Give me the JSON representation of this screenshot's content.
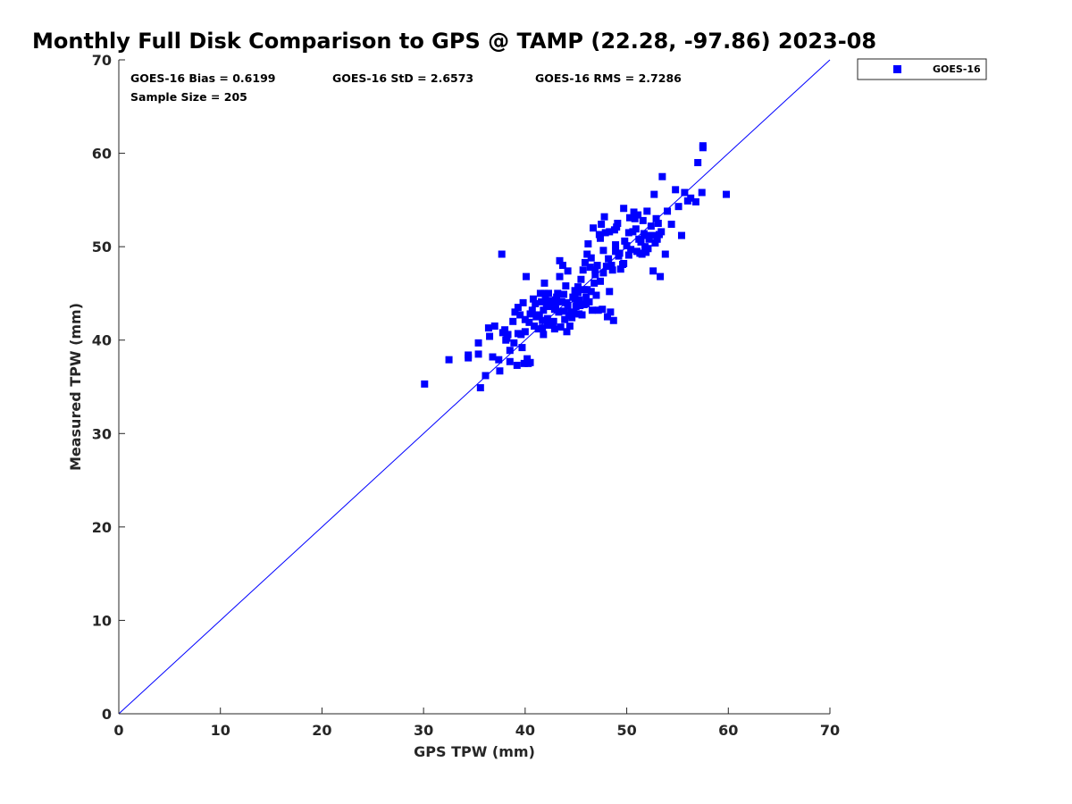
{
  "chart_data": {
    "type": "scatter",
    "title": "Monthly Full Disk Comparison to GPS @ TAMP (22.28, -97.86) 2023-08",
    "xlabel": "GPS TPW (mm)",
    "ylabel": "Measured TPW (mm)",
    "xlim": [
      0,
      70
    ],
    "ylim": [
      0,
      70
    ],
    "xticks": [
      "0",
      "10",
      "20",
      "30",
      "40",
      "50",
      "60",
      "70"
    ],
    "yticks": [
      "0",
      "10",
      "20",
      "30",
      "40",
      "50",
      "60",
      "70"
    ],
    "grid": false,
    "legend_position": "outside-top-right",
    "reference_line": {
      "x": [
        0,
        70
      ],
      "y": [
        0,
        70
      ],
      "color": "#0000ff"
    },
    "stats": {
      "bias": "GOES-16 Bias = 0.6199",
      "std": "GOES-16 StD = 2.6573",
      "rms": "GOES-16 RMS = 2.7286",
      "sample": "Sample Size = 205"
    },
    "marker_color": "#0000ff",
    "series": [
      {
        "name": "GOES-16",
        "points": [
          [
            30.1,
            35.3
          ],
          [
            32.5,
            37.9
          ],
          [
            34.4,
            38.1
          ],
          [
            34.4,
            38.4
          ],
          [
            35.4,
            38.5
          ],
          [
            35.4,
            39.7
          ],
          [
            35.6,
            34.9
          ],
          [
            36.1,
            36.2
          ],
          [
            36.4,
            41.3
          ],
          [
            36.5,
            40.4
          ],
          [
            36.8,
            38.2
          ],
          [
            37.0,
            41.5
          ],
          [
            37.4,
            37.9
          ],
          [
            37.5,
            36.7
          ],
          [
            37.7,
            49.2
          ],
          [
            37.8,
            40.8
          ],
          [
            38.0,
            41.1
          ],
          [
            38.1,
            40.0
          ],
          [
            38.3,
            40.6
          ],
          [
            38.5,
            37.7
          ],
          [
            38.5,
            38.9
          ],
          [
            38.8,
            42.0
          ],
          [
            38.9,
            39.7
          ],
          [
            39.0,
            43.0
          ],
          [
            39.2,
            37.3
          ],
          [
            39.3,
            43.5
          ],
          [
            39.5,
            42.7
          ],
          [
            39.6,
            40.6
          ],
          [
            39.7,
            39.2
          ],
          [
            39.8,
            44.0
          ],
          [
            39.9,
            37.5
          ],
          [
            40.0,
            40.9
          ],
          [
            40.0,
            42.2
          ],
          [
            40.1,
            46.8
          ],
          [
            40.2,
            38.0
          ],
          [
            40.3,
            37.5
          ],
          [
            40.5,
            42.8
          ],
          [
            40.5,
            37.6
          ],
          [
            40.7,
            43.2
          ],
          [
            40.8,
            44.4
          ],
          [
            40.9,
            41.5
          ],
          [
            41.0,
            43.9
          ],
          [
            41.1,
            42.5
          ],
          [
            41.3,
            41.2
          ],
          [
            41.4,
            42.7
          ],
          [
            41.6,
            44.1
          ],
          [
            41.7,
            42.1
          ],
          [
            41.8,
            40.6
          ],
          [
            41.8,
            43.2
          ],
          [
            41.9,
            46.1
          ],
          [
            41.9,
            45.0
          ],
          [
            42.0,
            44.5
          ],
          [
            42.1,
            43.8
          ],
          [
            42.2,
            42.3
          ],
          [
            42.3,
            45.0
          ],
          [
            42.4,
            43.6
          ],
          [
            42.6,
            44.2
          ],
          [
            42.7,
            41.6
          ],
          [
            42.8,
            42.0
          ],
          [
            42.9,
            41.2
          ],
          [
            43.0,
            43.6
          ],
          [
            43.1,
            44.6
          ],
          [
            43.2,
            45.0
          ],
          [
            43.3,
            43.0
          ],
          [
            43.4,
            48.5
          ],
          [
            43.4,
            46.8
          ],
          [
            43.5,
            41.4
          ],
          [
            43.6,
            44.1
          ],
          [
            43.7,
            48.0
          ],
          [
            43.8,
            44.9
          ],
          [
            43.9,
            42.2
          ],
          [
            44.0,
            45.8
          ],
          [
            44.1,
            40.9
          ],
          [
            44.2,
            43.7
          ],
          [
            44.2,
            47.4
          ],
          [
            44.3,
            42.6
          ],
          [
            44.4,
            41.5
          ],
          [
            44.5,
            43.0
          ],
          [
            44.7,
            44.6
          ],
          [
            44.8,
            42.9
          ],
          [
            44.9,
            45.3
          ],
          [
            45.0,
            43.6
          ],
          [
            45.1,
            44.1
          ],
          [
            45.2,
            45.7
          ],
          [
            45.3,
            44.3
          ],
          [
            45.4,
            43.7
          ],
          [
            45.5,
            46.5
          ],
          [
            45.6,
            42.7
          ],
          [
            45.7,
            47.5
          ],
          [
            45.8,
            43.8
          ],
          [
            45.9,
            48.3
          ],
          [
            46.0,
            44.6
          ],
          [
            46.1,
            49.2
          ],
          [
            46.1,
            45.4
          ],
          [
            46.2,
            50.3
          ],
          [
            46.3,
            44.1
          ],
          [
            46.4,
            47.8
          ],
          [
            46.5,
            45.2
          ],
          [
            46.6,
            43.2
          ],
          [
            46.7,
            52.0
          ],
          [
            46.8,
            46.1
          ],
          [
            46.9,
            47.5
          ],
          [
            47.0,
            44.8
          ],
          [
            47.1,
            48.0
          ],
          [
            47.2,
            43.2
          ],
          [
            47.3,
            51.3
          ],
          [
            47.4,
            50.9
          ],
          [
            47.5,
            52.4
          ],
          [
            47.6,
            43.3
          ],
          [
            47.7,
            47.2
          ],
          [
            47.8,
            53.2
          ],
          [
            47.9,
            51.5
          ],
          [
            48.0,
            47.9
          ],
          [
            48.1,
            42.5
          ],
          [
            48.2,
            48.7
          ],
          [
            48.3,
            51.6
          ],
          [
            48.3,
            45.2
          ],
          [
            48.4,
            43.0
          ],
          [
            48.5,
            48.0
          ],
          [
            48.6,
            47.5
          ],
          [
            48.7,
            42.1
          ],
          [
            48.8,
            51.8
          ],
          [
            48.9,
            49.5
          ],
          [
            49.0,
            52.1
          ],
          [
            49.1,
            52.5
          ],
          [
            49.2,
            49.0
          ],
          [
            49.3,
            49.3
          ],
          [
            49.4,
            47.6
          ],
          [
            49.6,
            48.1
          ],
          [
            49.7,
            54.1
          ],
          [
            49.8,
            50.6
          ],
          [
            50.0,
            50.1
          ],
          [
            50.2,
            51.5
          ],
          [
            50.3,
            53.1
          ],
          [
            50.4,
            49.7
          ],
          [
            50.6,
            51.6
          ],
          [
            50.7,
            53.7
          ],
          [
            50.8,
            53.0
          ],
          [
            50.9,
            51.9
          ],
          [
            51.0,
            49.5
          ],
          [
            51.1,
            53.4
          ],
          [
            51.2,
            50.8
          ],
          [
            51.3,
            49.3
          ],
          [
            51.4,
            50.5
          ],
          [
            51.5,
            49.2
          ],
          [
            51.6,
            52.8
          ],
          [
            51.7,
            51.4
          ],
          [
            51.8,
            50.0
          ],
          [
            51.9,
            49.4
          ],
          [
            52.0,
            53.8
          ],
          [
            52.1,
            49.8
          ],
          [
            52.2,
            50.8
          ],
          [
            52.4,
            52.2
          ],
          [
            52.5,
            51.2
          ],
          [
            52.6,
            47.4
          ],
          [
            52.7,
            55.6
          ],
          [
            52.8,
            50.4
          ],
          [
            52.9,
            53.0
          ],
          [
            53.0,
            50.8
          ],
          [
            53.1,
            52.5
          ],
          [
            53.2,
            51.3
          ],
          [
            53.3,
            46.8
          ],
          [
            53.5,
            57.5
          ],
          [
            53.8,
            49.2
          ],
          [
            54.0,
            53.8
          ],
          [
            54.4,
            52.4
          ],
          [
            54.8,
            56.1
          ],
          [
            55.1,
            54.3
          ],
          [
            55.4,
            51.2
          ],
          [
            55.7,
            55.8
          ],
          [
            56.0,
            54.9
          ],
          [
            56.3,
            55.2
          ],
          [
            56.8,
            54.8
          ],
          [
            57.0,
            59.0
          ],
          [
            57.4,
            55.8
          ],
          [
            57.5,
            60.8
          ],
          [
            57.5,
            60.6
          ],
          [
            59.8,
            55.6
          ],
          [
            44.9,
            44.4
          ],
          [
            42.6,
            43.7
          ],
          [
            45.3,
            42.8
          ],
          [
            43.0,
            44.3
          ],
          [
            41.2,
            42.7
          ],
          [
            46.0,
            43.9
          ],
          [
            44.6,
            42.4
          ],
          [
            42.2,
            41.6
          ],
          [
            47.7,
            49.6
          ],
          [
            46.5,
            48.8
          ],
          [
            49.7,
            48.2
          ],
          [
            45.2,
            45.1
          ],
          [
            40.4,
            41.9
          ],
          [
            39.3,
            40.7
          ],
          [
            43.8,
            43.1
          ],
          [
            41.5,
            45.0
          ],
          [
            48.9,
            50.2
          ],
          [
            51.8,
            51.2
          ],
          [
            53.4,
            51.6
          ],
          [
            46.9,
            47.0
          ],
          [
            38.2,
            40.2
          ],
          [
            44.1,
            44.0
          ],
          [
            42.9,
            43.3
          ],
          [
            45.8,
            45.4
          ],
          [
            47.4,
            46.3
          ],
          [
            50.2,
            49.1
          ],
          [
            41.7,
            41.3
          ]
        ]
      }
    ]
  }
}
